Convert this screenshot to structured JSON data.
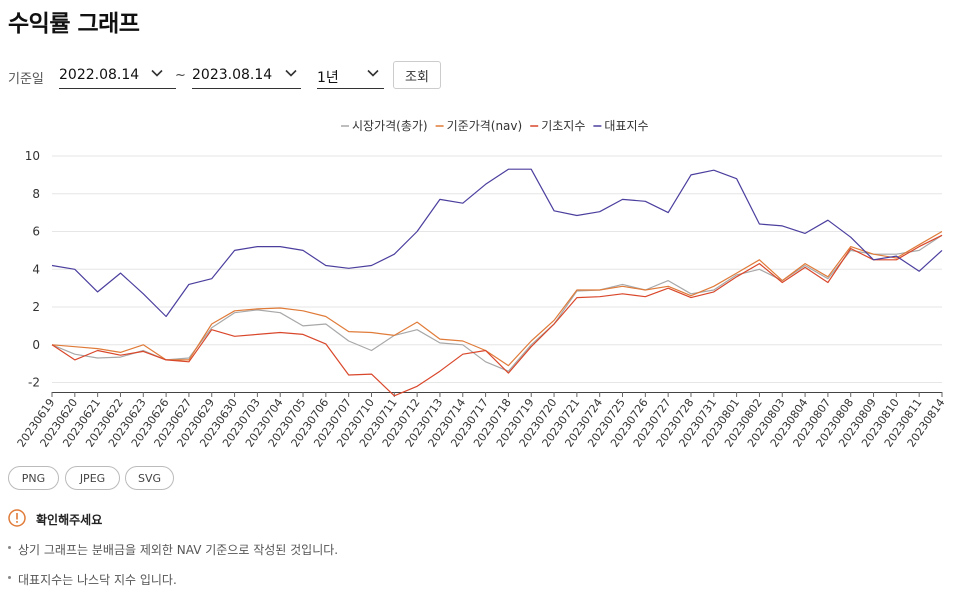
{
  "page": {
    "title": "수익률 그래프"
  },
  "filter": {
    "label": "기준일",
    "start_date": "2022.08.14",
    "end_date": "2023.08.14",
    "separator": "~",
    "period": "1년",
    "query_label": "조회"
  },
  "export": {
    "png": "PNG",
    "jpeg": "JPEG",
    "svg": "SVG"
  },
  "notice": {
    "title": "확인해주세요",
    "items": [
      "상기 그래프는 분배금을 제외한 NAV 기준으로 작성된 것입니다.",
      "대표지수는 나스닥 지수 입니다."
    ]
  },
  "chart_data": {
    "type": "line",
    "ylim": [
      -2.5,
      10
    ],
    "yticks": [
      -2,
      0,
      2,
      4,
      6,
      8,
      10
    ],
    "grid": "horizontal",
    "legend_position": "top",
    "categories": [
      "20230619",
      "20230620",
      "20230621",
      "20230622",
      "20230623",
      "20230626",
      "20230627",
      "20230629",
      "20230630",
      "20230703",
      "20230704",
      "20230705",
      "20230706",
      "20230707",
      "20230710",
      "20230711",
      "20230712",
      "20230713",
      "20230714",
      "20230717",
      "20230718",
      "20230719",
      "20230720",
      "20230721",
      "20230724",
      "20230725",
      "20230726",
      "20230727",
      "20230728",
      "20230731",
      "20230801",
      "20230802",
      "20230803",
      "20230804",
      "20230807",
      "20230808",
      "20230809",
      "20230810",
      "20230811",
      "20230814"
    ],
    "series": [
      {
        "name": "시장가격(총가)",
        "color": "#a8a8a8",
        "values": [
          0.0,
          -0.5,
          -0.7,
          -0.65,
          -0.3,
          -0.8,
          -0.7,
          0.9,
          1.7,
          1.85,
          1.7,
          1.0,
          1.1,
          0.2,
          -0.3,
          0.5,
          0.8,
          0.1,
          0.0,
          -0.9,
          -1.4,
          0.0,
          1.1,
          2.85,
          2.9,
          3.2,
          2.9,
          3.4,
          2.7,
          2.9,
          3.7,
          4.0,
          3.4,
          4.2,
          3.5,
          5.0,
          4.8,
          4.8,
          5.0,
          5.8
        ]
      },
      {
        "name": "기준가격(nav)",
        "color": "#e07b39",
        "values": [
          0.0,
          -0.1,
          -0.2,
          -0.4,
          0.0,
          -0.8,
          -0.8,
          1.1,
          1.8,
          1.9,
          1.95,
          1.8,
          1.5,
          0.7,
          0.65,
          0.5,
          1.2,
          0.3,
          0.2,
          -0.3,
          -1.1,
          0.2,
          1.3,
          2.9,
          2.9,
          3.1,
          2.9,
          3.1,
          2.6,
          3.1,
          3.8,
          4.5,
          3.4,
          4.3,
          3.6,
          5.2,
          4.8,
          4.6,
          5.3,
          6.0
        ]
      },
      {
        "name": "기초지수",
        "color": "#d9472b",
        "values": [
          0.0,
          -0.8,
          -0.3,
          -0.55,
          -0.35,
          -0.8,
          -0.9,
          0.8,
          0.45,
          0.55,
          0.65,
          0.55,
          0.05,
          -1.6,
          -1.55,
          -2.7,
          -2.2,
          -1.4,
          -0.5,
          -0.3,
          -1.5,
          -0.1,
          1.1,
          2.5,
          2.55,
          2.7,
          2.55,
          3.0,
          2.5,
          2.8,
          3.6,
          4.3,
          3.3,
          4.1,
          3.3,
          5.1,
          4.5,
          4.5,
          5.2,
          5.8
        ]
      },
      {
        "name": "대표지수",
        "color": "#4b3f9e",
        "values": [
          4.2,
          4.0,
          2.8,
          3.8,
          2.7,
          1.5,
          3.2,
          3.5,
          5.0,
          5.2,
          5.2,
          5.0,
          4.2,
          4.05,
          4.2,
          4.8,
          6.0,
          7.7,
          7.5,
          8.5,
          9.3,
          9.3,
          7.1,
          6.85,
          7.05,
          7.7,
          7.6,
          7.0,
          9.0,
          9.25,
          8.8,
          6.4,
          6.3,
          5.9,
          6.6,
          5.7,
          4.5,
          4.7,
          3.9,
          5.0
        ]
      }
    ]
  }
}
